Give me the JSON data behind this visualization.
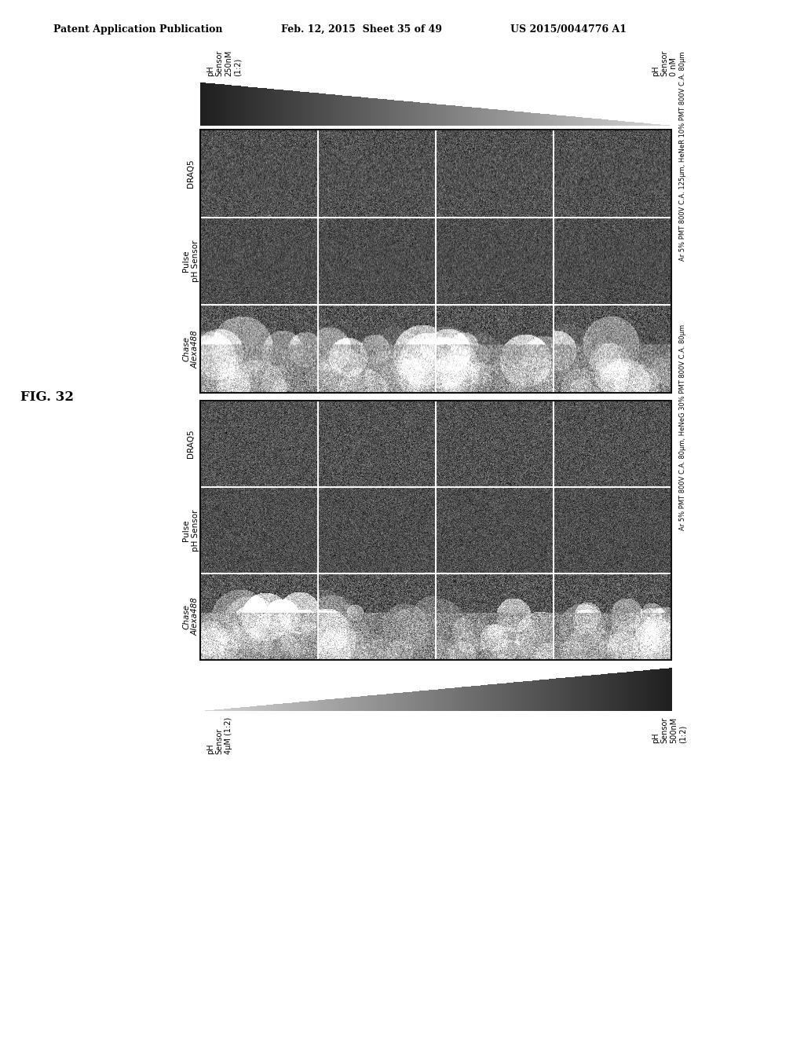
{
  "title_left": "Patent Application Publication",
  "title_mid": "Feb. 12, 2015  Sheet 35 of 49",
  "title_right": "US 2015/0044776 A1",
  "fig_label": "FIG. 32",
  "bg_color": "#ffffff",
  "top_gradient_label1": "pH\nSensor\n250nM\n(1:2)",
  "top_gradient_label2": "pH\nSensor\n0 nM",
  "bottom_gradient_label1": "pH\nSensor\n4μM (1:2)",
  "bottom_gradient_label2": "pH\nSensor\n500nM\n(1:2)",
  "row_labels": [
    "Chase\nAlexa488",
    "Pulse\npH Sensor",
    "DRAQ5"
  ],
  "right_label_top": "Ar 5% PMT 800V C.A. 125μm, HeNeR 10% PMT 800V C.A. 80μm",
  "right_label_bot": "Ar 5% PMT 800V C.A. 80μm, HeNeG 30% PMT 800V C.A. 80μm"
}
